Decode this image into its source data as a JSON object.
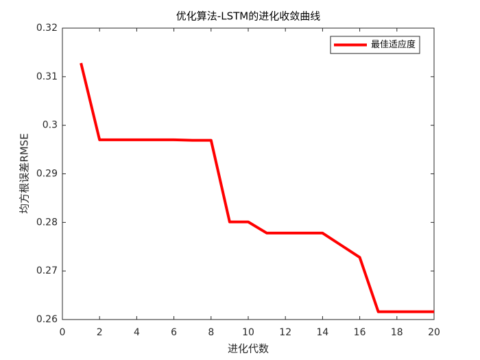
{
  "chart_data": {
    "type": "line",
    "title": "优化算法-LSTM的进化收敛曲线",
    "xlabel": "进化代数",
    "ylabel": "均方根误差RMSE",
    "x": [
      1,
      2,
      3,
      4,
      5,
      6,
      7,
      8,
      9,
      10,
      11,
      12,
      13,
      14,
      15,
      16,
      17,
      18,
      19,
      20
    ],
    "series": [
      {
        "name": "最佳适应度",
        "color": "#ff0000",
        "values": [
          0.3128,
          0.297,
          0.297,
          0.297,
          0.297,
          0.297,
          0.2969,
          0.2969,
          0.2801,
          0.2801,
          0.2778,
          0.2778,
          0.2778,
          0.2778,
          0.2753,
          0.2728,
          0.2616,
          0.2616,
          0.2616,
          0.2616
        ]
      }
    ],
    "xlim": [
      0,
      20
    ],
    "xticks": [
      0,
      2,
      4,
      6,
      8,
      10,
      12,
      14,
      16,
      18,
      20
    ],
    "ylim": [
      0.26,
      0.32
    ],
    "yticks": [
      0.26,
      0.27,
      0.28,
      0.29,
      0.3,
      0.31,
      0.32
    ],
    "legend": "northeast",
    "grid": false
  }
}
